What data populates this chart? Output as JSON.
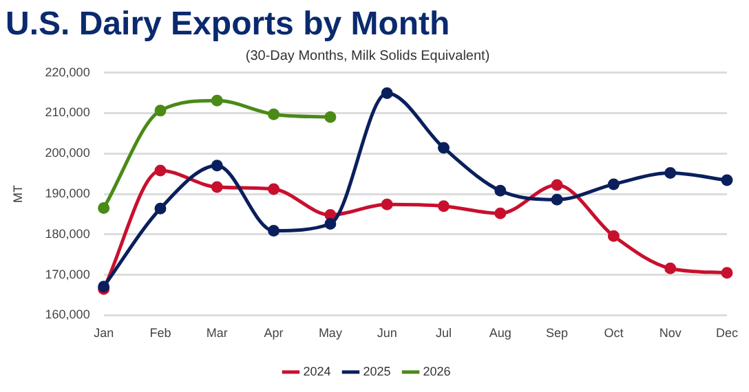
{
  "chart_data": {
    "type": "line",
    "title": "U.S. Dairy Exports by Month",
    "subtitle": "(30-Day Months, Milk Solids Equivalent)",
    "ylabel": "MT",
    "categories": [
      "Jan",
      "Feb",
      "Mar",
      "Apr",
      "May",
      "Jun",
      "Jul",
      "Aug",
      "Sep",
      "Oct",
      "Nov",
      "Dec"
    ],
    "series": [
      {
        "name": "2024",
        "color": "#c8102e",
        "values": [
          166500,
          195800,
          191700,
          191200,
          184800,
          187400,
          187000,
          185200,
          192200,
          179600,
          171600,
          170500
        ]
      },
      {
        "name": "2025",
        "color": "#0a1f5c",
        "values": [
          167100,
          186400,
          197000,
          180900,
          182600,
          214900,
          201400,
          190800,
          188600,
          192400,
          195200,
          193400
        ]
      },
      {
        "name": "2026",
        "color": "#4a8a16",
        "values": [
          186500,
          210600,
          213100,
          209700,
          209000,
          null,
          null,
          null,
          null,
          null,
          null,
          null
        ]
      }
    ],
    "ylim": [
      160000,
      220000
    ],
    "yticks": [
      {
        "value": 160000,
        "label": "160,000"
      },
      {
        "value": 170000,
        "label": "170,000"
      },
      {
        "value": 180000,
        "label": "180,000"
      },
      {
        "value": 190000,
        "label": "190,000"
      },
      {
        "value": 200000,
        "label": "200,000"
      },
      {
        "value": 210000,
        "label": "210,000"
      },
      {
        "value": 220000,
        "label": "220,000"
      }
    ],
    "grid": "y",
    "legend": "bottom",
    "marker": "circle",
    "line_style": "solid"
  }
}
